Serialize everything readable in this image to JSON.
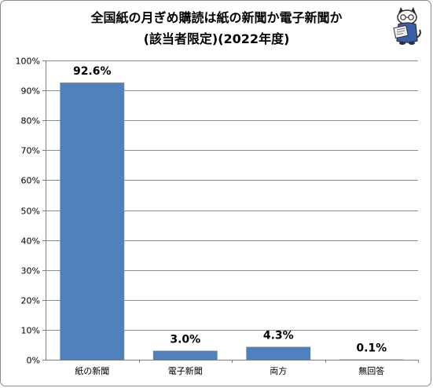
{
  "chart_data": {
    "type": "bar",
    "title_lines": [
      "全国紙の月ぎめ購読は紙の新聞か電子新聞か",
      "(該当者限定)(2022年度)"
    ],
    "categories": [
      "紙の新聞",
      "電子新聞",
      "両方",
      "無回答"
    ],
    "values": [
      92.6,
      3.0,
      4.3,
      0.1
    ],
    "data_labels": [
      "92.6%",
      "3.0%",
      "4.3%",
      "0.1%"
    ],
    "ylim": [
      0,
      100
    ],
    "yticks": [
      0,
      10,
      20,
      30,
      40,
      50,
      60,
      70,
      80,
      90,
      100
    ],
    "ytick_labels": [
      "0%",
      "10%",
      "20%",
      "30%",
      "40%",
      "50%",
      "60%",
      "70%",
      "80%",
      "90%",
      "100%"
    ],
    "grid": true,
    "legend": "none"
  },
  "colors": {
    "bar": "#4f81bd",
    "grid": "#8c8c8c",
    "axis": "#7f7f7f"
  },
  "mascot": {
    "icon": "newspaper-reading-cat-mascot-icon"
  }
}
